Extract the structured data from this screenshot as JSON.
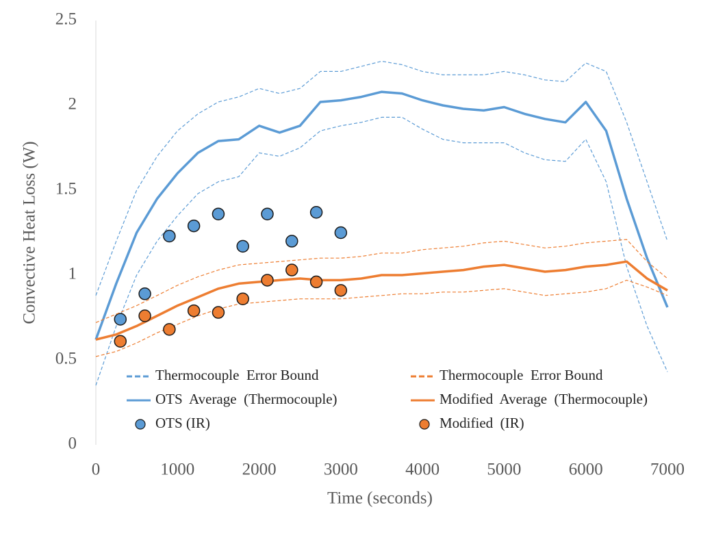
{
  "chart_data": {
    "type": "line",
    "x_label": "Time (seconds)",
    "y_label": "Convective Heat Loss (W)",
    "xlim": [
      0,
      7000
    ],
    "ylim": [
      0,
      2.5
    ],
    "xticks": [
      0,
      1000,
      2000,
      3000,
      4000,
      5000,
      6000,
      7000
    ],
    "yticks": [
      0,
      0.5,
      1,
      1.5,
      2,
      2.5
    ],
    "grid": false,
    "legend": "bottom",
    "x": [
      0,
      250,
      500,
      750,
      1000,
      1250,
      1500,
      1750,
      2000,
      2250,
      2500,
      2750,
      3000,
      3250,
      3500,
      3750,
      4000,
      4250,
      4500,
      4750,
      5000,
      5250,
      5500,
      5750,
      6000,
      6250,
      6500,
      6750,
      7000
    ],
    "series": [
      {
        "name": "Thermocouple  Error Bound",
        "type": "band",
        "color": "#5b9bd5",
        "upper": [
          0.88,
          1.2,
          1.5,
          1.7,
          1.85,
          1.95,
          2.02,
          2.05,
          2.1,
          2.07,
          2.1,
          2.2,
          2.2,
          2.23,
          2.26,
          2.24,
          2.2,
          2.18,
          2.18,
          2.18,
          2.2,
          2.18,
          2.15,
          2.14,
          2.25,
          2.2,
          1.9,
          1.55,
          1.2
        ],
        "lower": [
          0.35,
          0.7,
          1.0,
          1.2,
          1.35,
          1.48,
          1.55,
          1.58,
          1.72,
          1.7,
          1.75,
          1.85,
          1.88,
          1.9,
          1.93,
          1.93,
          1.86,
          1.8,
          1.78,
          1.78,
          1.78,
          1.72,
          1.68,
          1.67,
          1.8,
          1.55,
          1.05,
          0.7,
          0.43
        ]
      },
      {
        "name": "OTS  Average  (Thermocouple)",
        "type": "line",
        "color": "#5b9bd5",
        "values": [
          0.62,
          0.95,
          1.25,
          1.45,
          1.6,
          1.72,
          1.79,
          1.8,
          1.88,
          1.84,
          1.88,
          2.02,
          2.03,
          2.05,
          2.08,
          2.07,
          2.03,
          2.0,
          1.98,
          1.97,
          1.99,
          1.95,
          1.92,
          1.9,
          2.02,
          1.85,
          1.45,
          1.1,
          0.81
        ]
      },
      {
        "name": "OTS (IR)",
        "type": "scatter",
        "color": "#5b9bd5",
        "x": [
          300,
          600,
          900,
          1200,
          1500,
          1800,
          2100,
          2400,
          2700,
          3000
        ],
        "values": [
          0.74,
          0.89,
          1.23,
          1.29,
          1.36,
          1.17,
          1.36,
          1.2,
          1.37,
          1.25
        ]
      },
      {
        "name": "Thermocouple  Error Bound",
        "type": "band",
        "color": "#ed7d31",
        "upper": [
          0.72,
          0.77,
          0.82,
          0.88,
          0.94,
          0.99,
          1.03,
          1.06,
          1.07,
          1.08,
          1.09,
          1.1,
          1.1,
          1.11,
          1.13,
          1.13,
          1.15,
          1.16,
          1.17,
          1.19,
          1.2,
          1.18,
          1.16,
          1.17,
          1.19,
          1.2,
          1.21,
          1.08,
          0.98
        ],
        "lower": [
          0.52,
          0.55,
          0.6,
          0.66,
          0.71,
          0.76,
          0.8,
          0.83,
          0.84,
          0.85,
          0.86,
          0.86,
          0.86,
          0.87,
          0.88,
          0.89,
          0.89,
          0.9,
          0.9,
          0.91,
          0.92,
          0.9,
          0.88,
          0.89,
          0.9,
          0.92,
          0.97,
          0.93,
          0.88
        ]
      },
      {
        "name": "Modified  Average  (Thermocouple)",
        "type": "line",
        "color": "#ed7d31",
        "values": [
          0.62,
          0.65,
          0.7,
          0.76,
          0.82,
          0.87,
          0.92,
          0.95,
          0.96,
          0.97,
          0.98,
          0.97,
          0.97,
          0.98,
          1.0,
          1.0,
          1.01,
          1.02,
          1.03,
          1.05,
          1.06,
          1.04,
          1.02,
          1.03,
          1.05,
          1.06,
          1.08,
          0.98,
          0.91
        ]
      },
      {
        "name": "Modified  (IR)",
        "type": "scatter",
        "color": "#ed7d31",
        "x": [
          300,
          600,
          900,
          1200,
          1500,
          1800,
          2100,
          2400,
          2700,
          3000
        ],
        "values": [
          0.61,
          0.76,
          0.68,
          0.79,
          0.78,
          0.86,
          0.97,
          1.03,
          0.96,
          0.91
        ]
      }
    ]
  }
}
